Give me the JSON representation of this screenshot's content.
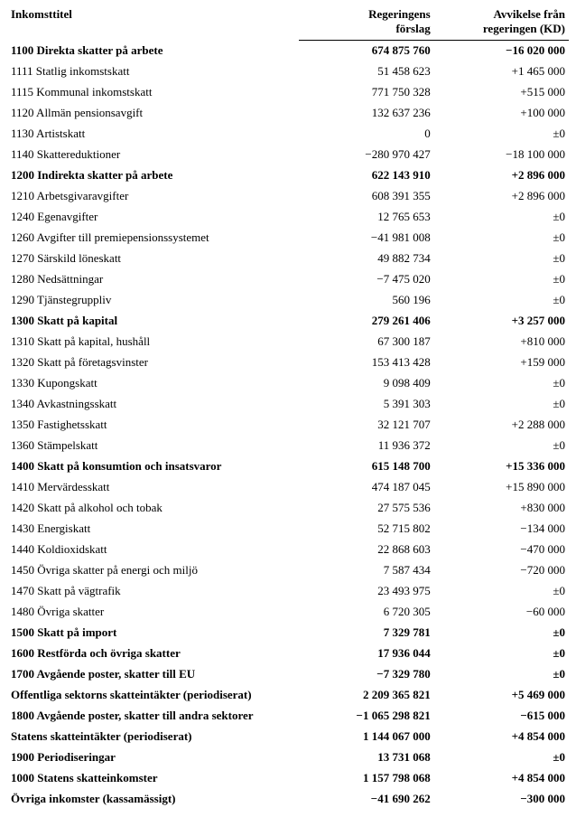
{
  "header": {
    "col1": "Inkomsttitel",
    "col2_line1": "Regeringens",
    "col2_line2": "förslag",
    "col3_line1": "Avvikelse från",
    "col3_line2": "regeringen (KD)"
  },
  "rows": [
    {
      "bold": true,
      "title": "1100 Direkta skatter på arbete",
      "gov": "674 875 760",
      "dev": "−16 020 000"
    },
    {
      "bold": false,
      "title": "1111 Statlig inkomstskatt",
      "gov": "51 458 623",
      "dev": "+1 465 000"
    },
    {
      "bold": false,
      "title": "1115 Kommunal inkomstskatt",
      "gov": "771 750 328",
      "dev": "+515 000"
    },
    {
      "bold": false,
      "title": "1120 Allmän pensionsavgift",
      "gov": "132 637 236",
      "dev": "+100 000"
    },
    {
      "bold": false,
      "title": "1130 Artistskatt",
      "gov": "0",
      "dev": "±0"
    },
    {
      "bold": false,
      "title": "1140 Skattereduktioner",
      "gov": "−280 970 427",
      "dev": "−18 100 000"
    },
    {
      "bold": true,
      "title": "1200 Indirekta skatter på arbete",
      "gov": "622 143 910",
      "dev": "+2 896 000"
    },
    {
      "bold": false,
      "title": "1210 Arbetsgivaravgifter",
      "gov": "608 391 355",
      "dev": "+2 896 000"
    },
    {
      "bold": false,
      "title": "1240 Egenavgifter",
      "gov": "12 765 653",
      "dev": "±0"
    },
    {
      "bold": false,
      "title": "1260 Avgifter till premiepensionssystemet",
      "gov": "−41 981 008",
      "dev": "±0"
    },
    {
      "bold": false,
      "title": "1270 Särskild löneskatt",
      "gov": "49 882 734",
      "dev": "±0"
    },
    {
      "bold": false,
      "title": "1280 Nedsättningar",
      "gov": "−7 475 020",
      "dev": "±0"
    },
    {
      "bold": false,
      "title": "1290 Tjänstegruppliv",
      "gov": "560 196",
      "dev": "±0"
    },
    {
      "bold": true,
      "title": "1300 Skatt på kapital",
      "gov": "279 261 406",
      "dev": "+3 257 000"
    },
    {
      "bold": false,
      "title": "1310 Skatt på kapital, hushåll",
      "gov": "67 300 187",
      "dev": "+810 000"
    },
    {
      "bold": false,
      "title": "1320 Skatt på företagsvinster",
      "gov": "153 413 428",
      "dev": "+159 000"
    },
    {
      "bold": false,
      "title": "1330 Kupongskatt",
      "gov": "9 098 409",
      "dev": "±0"
    },
    {
      "bold": false,
      "title": "1340 Avkastningsskatt",
      "gov": "5 391 303",
      "dev": "±0"
    },
    {
      "bold": false,
      "title": "1350 Fastighetsskatt",
      "gov": "32 121 707",
      "dev": "+2 288 000"
    },
    {
      "bold": false,
      "title": "1360 Stämpelskatt",
      "gov": "11 936 372",
      "dev": "±0"
    },
    {
      "bold": true,
      "title": "1400 Skatt på konsumtion och insatsvaror",
      "gov": "615 148 700",
      "dev": "+15 336 000"
    },
    {
      "bold": false,
      "title": "1410 Mervärdesskatt",
      "gov": "474 187 045",
      "dev": "+15 890 000"
    },
    {
      "bold": false,
      "title": "1420 Skatt på alkohol och tobak",
      "gov": "27 575 536",
      "dev": "+830 000"
    },
    {
      "bold": false,
      "title": "1430 Energiskatt",
      "gov": "52 715 802",
      "dev": "−134 000"
    },
    {
      "bold": false,
      "title": "1440 Koldioxidskatt",
      "gov": "22 868 603",
      "dev": "−470 000"
    },
    {
      "bold": false,
      "title": "1450 Övriga skatter på energi och miljö",
      "gov": "7 587 434",
      "dev": "−720 000"
    },
    {
      "bold": false,
      "title": "1470 Skatt på vägtrafik",
      "gov": "23 493 975",
      "dev": "±0"
    },
    {
      "bold": false,
      "title": "1480 Övriga skatter",
      "gov": "6 720 305",
      "dev": "−60 000"
    },
    {
      "bold": true,
      "title": "1500 Skatt på import",
      "gov": "7 329 781",
      "dev": "±0"
    },
    {
      "bold": true,
      "title": "1600 Restförda och övriga skatter",
      "gov": "17 936 044",
      "dev": "±0"
    },
    {
      "bold": true,
      "title": "1700 Avgående poster, skatter till EU",
      "gov": "−7 329 780",
      "dev": "±0"
    },
    {
      "bold": true,
      "title": "Offentliga sektorns skatteintäkter (periodiserat)",
      "gov": "2 209 365 821",
      "dev": "+5 469 000"
    },
    {
      "bold": true,
      "title": "1800 Avgående poster, skatter till andra sektorer",
      "gov": "−1 065 298 821",
      "dev": "−615 000"
    },
    {
      "bold": true,
      "title": "Statens skatteintäkter (periodiserat)",
      "gov": "1 144 067 000",
      "dev": "+4 854 000"
    },
    {
      "bold": true,
      "title": "1900 Periodiseringar",
      "gov": "13 731 068",
      "dev": "±0"
    },
    {
      "bold": true,
      "title": "1000 Statens skatteinkomster",
      "gov": "1 157 798 068",
      "dev": "+4 854 000"
    },
    {
      "bold": true,
      "title": "Övriga inkomster (kassamässigt)",
      "gov": "−41 690 262",
      "dev": "−300 000"
    }
  ]
}
